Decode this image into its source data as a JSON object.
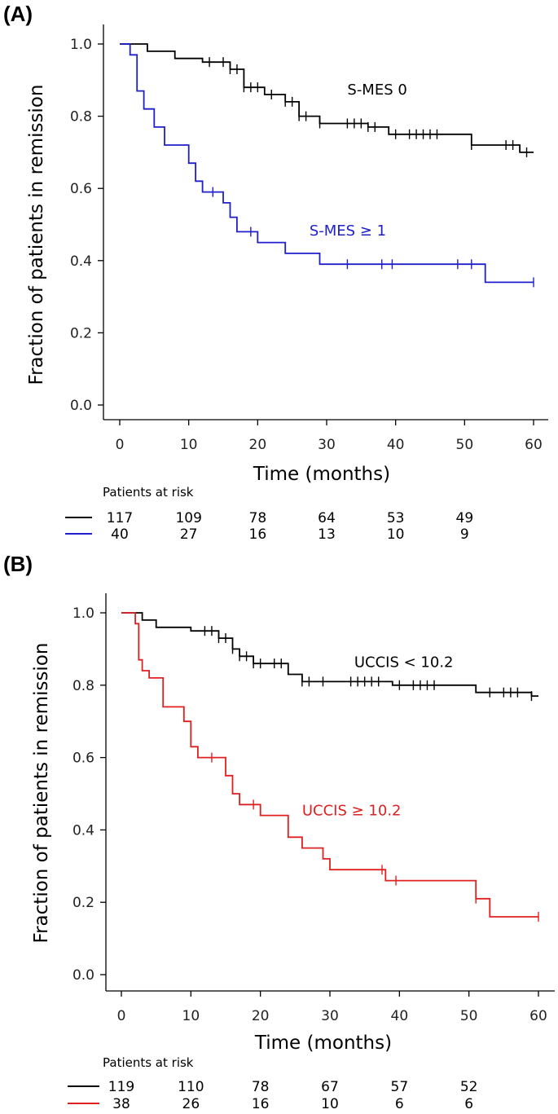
{
  "chart_data": [
    {
      "panel_label": "(A)",
      "type": "line",
      "xlabel": "Time (months)",
      "ylabel": "Fraction of patients in remission",
      "xlim": [
        0,
        60
      ],
      "ylim": [
        0,
        1
      ],
      "x_ticks": [
        "0",
        "10",
        "20",
        "30",
        "40",
        "50",
        "60"
      ],
      "y_ticks": [
        "0.0",
        "0.2",
        "0.4",
        "0.6",
        "0.8",
        "1.0"
      ],
      "series": [
        {
          "name": "S-MES 0",
          "color": "#000000",
          "steps": [
            [
              0,
              1.0
            ],
            [
              4,
              0.98
            ],
            [
              8,
              0.96
            ],
            [
              12,
              0.95
            ],
            [
              16,
              0.93
            ],
            [
              18,
              0.88
            ],
            [
              21,
              0.86
            ],
            [
              24,
              0.84
            ],
            [
              26,
              0.8
            ],
            [
              29,
              0.78
            ],
            [
              36,
              0.77
            ],
            [
              39,
              0.75
            ],
            [
              51,
              0.72
            ],
            [
              58,
              0.7
            ],
            [
              60,
              0.7
            ]
          ],
          "censors": [
            13,
            15,
            16,
            17,
            18,
            19,
            20,
            22,
            24,
            25,
            26,
            27,
            29,
            33,
            34,
            35,
            36,
            37,
            40,
            42,
            43,
            44,
            45,
            46,
            51,
            56,
            57,
            59
          ]
        },
        {
          "name": "S-MES ≥ 1",
          "color": "#1f1fcc",
          "steps": [
            [
              0,
              1.0
            ],
            [
              1.5,
              0.97
            ],
            [
              2.5,
              0.87
            ],
            [
              3.5,
              0.82
            ],
            [
              5,
              0.77
            ],
            [
              6.5,
              0.72
            ],
            [
              10,
              0.67
            ],
            [
              11,
              0.62
            ],
            [
              12,
              0.59
            ],
            [
              15,
              0.56
            ],
            [
              16,
              0.52
            ],
            [
              17,
              0.48
            ],
            [
              20,
              0.45
            ],
            [
              24,
              0.42
            ],
            [
              29,
              0.39
            ],
            [
              53,
              0.34
            ],
            [
              60,
              0.34
            ]
          ],
          "censors": [
            13.5,
            19,
            33,
            38,
            39.5,
            49,
            51,
            60
          ]
        }
      ],
      "annotations": [
        {
          "text": "S-MES 0",
          "color": "#000000",
          "x": 33,
          "y": 0.86
        },
        {
          "text": "S-MES ≥ 1",
          "color": "#1f1fcc",
          "x": 27.5,
          "y": 0.47
        }
      ],
      "risk_table": {
        "title": "Patients at risk",
        "times": [
          0,
          10,
          20,
          30,
          40,
          50
        ],
        "rows": [
          {
            "color": "#000000",
            "values": [
              "117",
              "109",
              "78",
              "64",
              "53",
              "49"
            ]
          },
          {
            "color": "#1f1fcc",
            "values": [
              "40",
              "27",
              "16",
              "13",
              "10",
              "9"
            ]
          }
        ]
      }
    },
    {
      "panel_label": "(B)",
      "type": "line",
      "xlabel": "Time (months)",
      "ylabel": "Fraction of patients in remission",
      "xlim": [
        0,
        60
      ],
      "ylim": [
        0,
        1
      ],
      "x_ticks": [
        "0",
        "10",
        "20",
        "30",
        "40",
        "50",
        "60"
      ],
      "y_ticks": [
        "0.0",
        "0.2",
        "0.4",
        "0.6",
        "0.8",
        "1.0"
      ],
      "series": [
        {
          "name": "UCCIS < 10.2",
          "color": "#000000",
          "steps": [
            [
              0,
              1.0
            ],
            [
              3,
              0.98
            ],
            [
              5,
              0.96
            ],
            [
              10,
              0.95
            ],
            [
              14,
              0.93
            ],
            [
              16,
              0.9
            ],
            [
              17,
              0.88
            ],
            [
              19,
              0.86
            ],
            [
              24,
              0.83
            ],
            [
              26,
              0.81
            ],
            [
              39,
              0.8
            ],
            [
              51,
              0.78
            ],
            [
              59,
              0.77
            ],
            [
              60,
              0.77
            ]
          ],
          "censors": [
            12,
            13,
            14,
            15,
            16,
            17,
            18,
            19,
            20,
            22,
            23,
            26,
            27,
            29,
            33,
            34,
            35,
            36,
            37,
            40,
            42,
            43,
            44,
            45,
            53,
            55,
            56,
            57,
            59
          ]
        },
        {
          "name": "UCCIS ≥ 10.2",
          "color": "#e02020",
          "steps": [
            [
              0,
              1.0
            ],
            [
              2,
              0.97
            ],
            [
              2.5,
              0.87
            ],
            [
              3,
              0.84
            ],
            [
              4,
              0.82
            ],
            [
              6,
              0.74
            ],
            [
              9,
              0.7
            ],
            [
              10,
              0.63
            ],
            [
              11,
              0.6
            ],
            [
              15,
              0.55
            ],
            [
              16,
              0.5
            ],
            [
              17,
              0.47
            ],
            [
              20,
              0.44
            ],
            [
              24,
              0.38
            ],
            [
              26,
              0.35
            ],
            [
              29,
              0.32
            ],
            [
              30,
              0.29
            ],
            [
              38,
              0.26
            ],
            [
              51,
              0.21
            ],
            [
              53,
              0.16
            ],
            [
              60,
              0.16
            ]
          ],
          "censors": [
            13,
            19,
            37.5,
            39.5,
            51,
            60
          ]
        }
      ],
      "annotations": [
        {
          "text": "UCCIS < 10.2",
          "color": "#000000",
          "x": 33.5,
          "y": 0.85
        },
        {
          "text": "UCCIS ≥ 10.2",
          "color": "#e02020",
          "x": 26,
          "y": 0.44
        }
      ],
      "risk_table": {
        "title": "Patients at risk",
        "times": [
          0,
          10,
          20,
          30,
          40,
          50
        ],
        "rows": [
          {
            "color": "#000000",
            "values": [
              "119",
              "110",
              "78",
              "67",
              "57",
              "52"
            ]
          },
          {
            "color": "#e02020",
            "values": [
              "38",
              "26",
              "16",
              "10",
              "6",
              "6"
            ]
          }
        ]
      }
    }
  ]
}
